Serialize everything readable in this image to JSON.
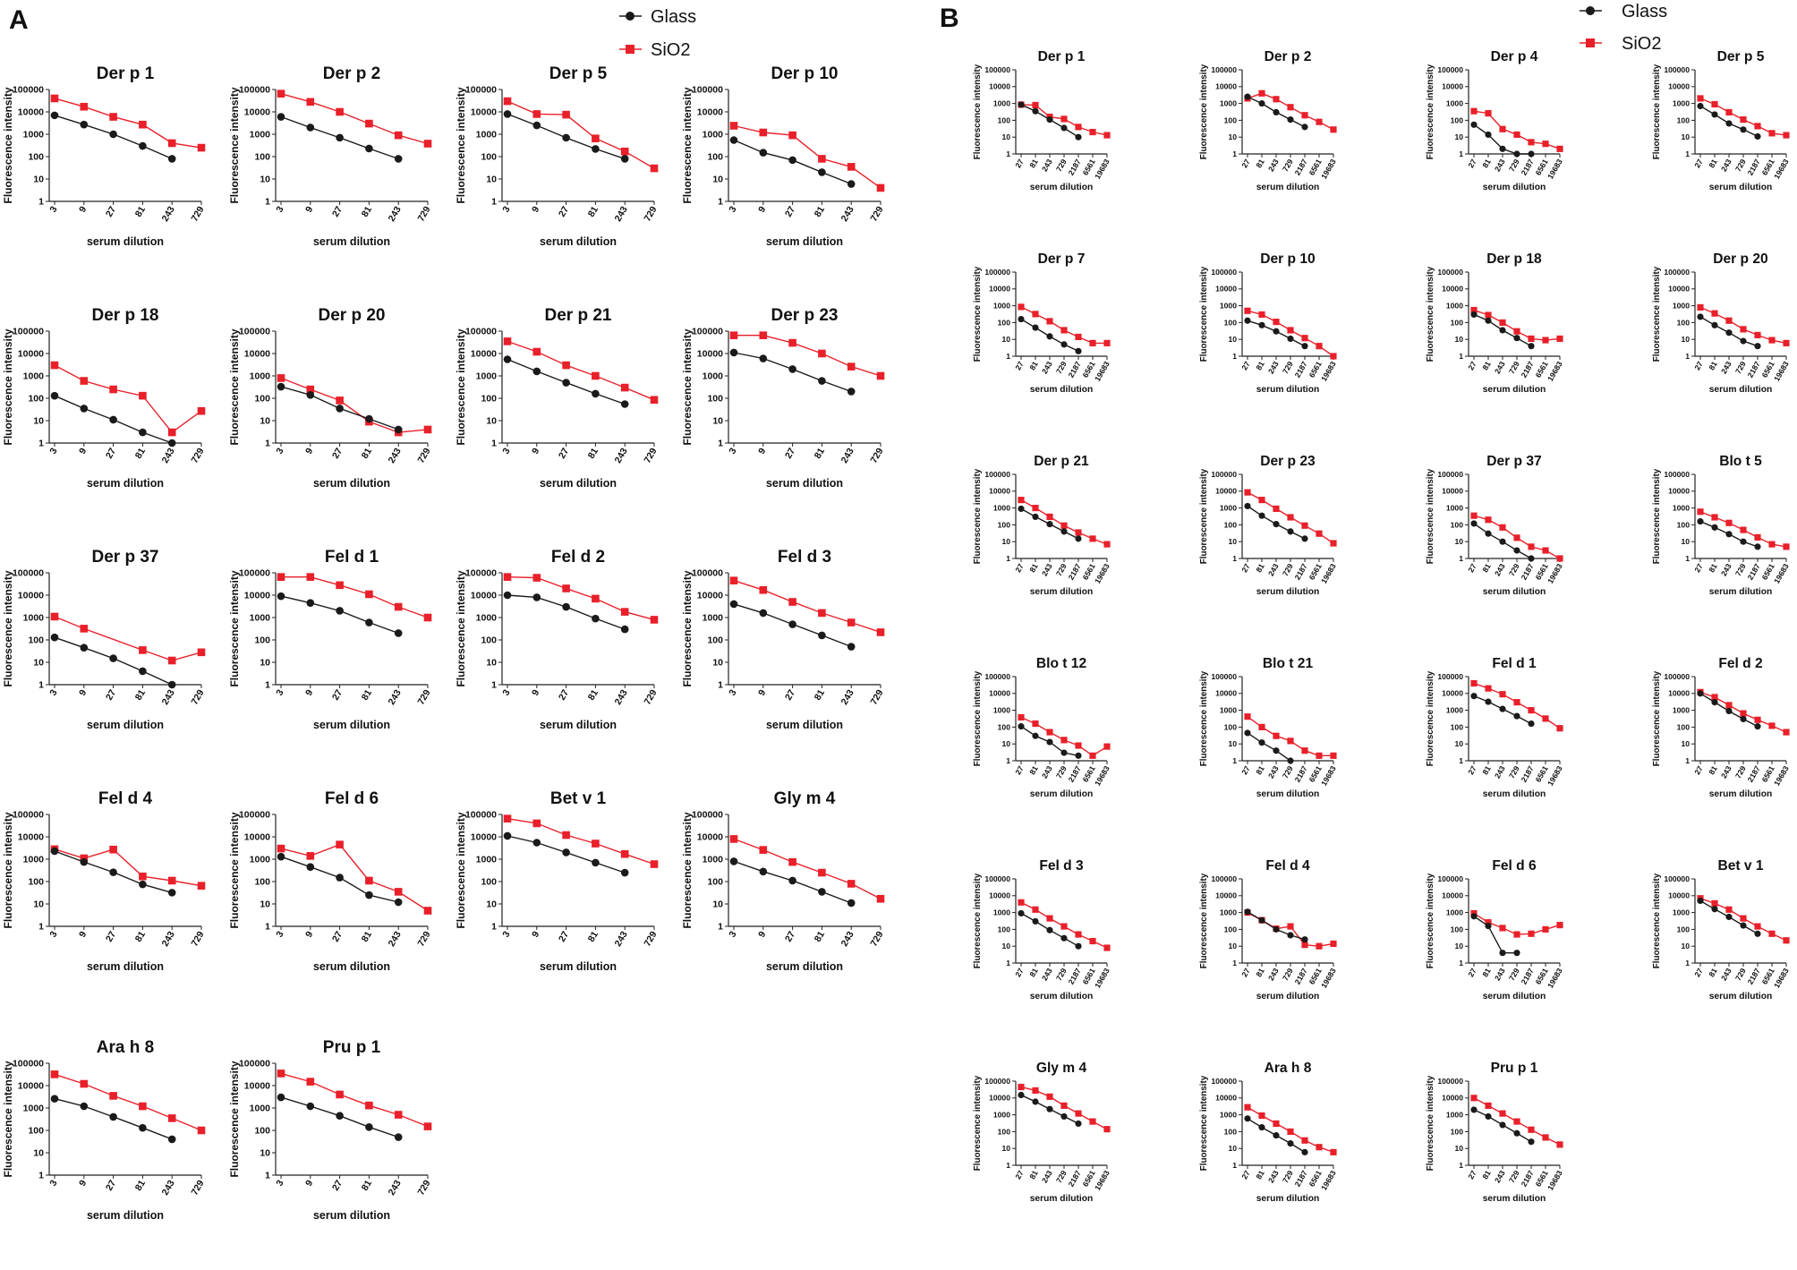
{
  "figure": {
    "panel_a_label": "A",
    "panel_b_label": "B"
  },
  "legend": {
    "glass_label": "Glass",
    "sio2_label": "SiO2",
    "glass_color": "#1a1a1a",
    "sio2_color": "#e8202a"
  },
  "axes": {
    "ylabel": "Fluorescence intensity",
    "xlabel": "serum dilution",
    "yticks": [
      "1",
      "10",
      "100",
      "1000",
      "10000",
      "100000"
    ]
  },
  "chart_data": [
    {
      "panel": "A",
      "type": "line",
      "yscale": "log",
      "ylim": [
        1,
        100000
      ],
      "xlabel": "serum dilution",
      "ylabel": "Fluorescence intensity",
      "categories": [
        "3",
        "9",
        "27",
        "81",
        "243",
        "729"
      ],
      "subplots": [
        {
          "title": "Der p 1",
          "glass": [
            7000,
            2700,
            1000,
            300,
            80,
            null
          ],
          "sio2": [
            40000,
            17000,
            6000,
            2700,
            400,
            250
          ]
        },
        {
          "title": "Der p 2",
          "glass": [
            6000,
            2000,
            700,
            230,
            80,
            null
          ],
          "sio2": [
            65000,
            28000,
            10000,
            3000,
            900,
            380
          ]
        },
        {
          "title": "Der p 5",
          "glass": [
            8000,
            2500,
            700,
            220,
            80,
            null
          ],
          "sio2": [
            30000,
            8000,
            7500,
            650,
            170,
            30
          ]
        },
        {
          "title": "Der p 10",
          "glass": [
            550,
            150,
            70,
            20,
            6,
            null
          ],
          "sio2": [
            2400,
            1200,
            900,
            80,
            35,
            4
          ]
        },
        {
          "title": "Der p 18",
          "glass": [
            130,
            35,
            11,
            3,
            1,
            null
          ],
          "sio2": [
            3000,
            600,
            250,
            130,
            3,
            27
          ]
        },
        {
          "title": "Der p 20",
          "glass": [
            330,
            140,
            35,
            12,
            4,
            null
          ],
          "sio2": [
            800,
            250,
            80,
            9,
            3,
            4
          ]
        },
        {
          "title": "Der p 21",
          "glass": [
            5500,
            1600,
            500,
            160,
            55,
            null
          ],
          "sio2": [
            35000,
            12000,
            3000,
            1000,
            300,
            85
          ]
        },
        {
          "title": "Der p 23",
          "glass": [
            11000,
            6000,
            2000,
            600,
            200,
            null
          ],
          "sio2": [
            65000,
            65000,
            30000,
            10000,
            2600,
            1000
          ]
        },
        {
          "title": "Der p 37",
          "glass": [
            130,
            45,
            15,
            4,
            1,
            null
          ],
          "sio2": [
            1100,
            320,
            null,
            35,
            12,
            28
          ]
        },
        {
          "title": "Fel d 1",
          "glass": [
            9000,
            4500,
            2000,
            600,
            200,
            null
          ],
          "sio2": [
            65000,
            65000,
            28000,
            11000,
            3000,
            1000
          ]
        },
        {
          "title": "Fel d 2",
          "glass": [
            10000,
            8000,
            3000,
            900,
            300,
            null
          ],
          "sio2": [
            65000,
            60000,
            20000,
            7000,
            1800,
            800
          ]
        },
        {
          "title": "Fel d 3",
          "glass": [
            4000,
            1600,
            500,
            160,
            50,
            null
          ],
          "sio2": [
            45000,
            17000,
            5000,
            1600,
            600,
            220
          ]
        },
        {
          "title": "Fel d 4",
          "glass": [
            2300,
            750,
            260,
            75,
            32,
            null
          ],
          "sio2": [
            2800,
            1100,
            2700,
            170,
            110,
            65
          ]
        },
        {
          "title": "Fel d 6",
          "glass": [
            1300,
            450,
            150,
            25,
            12,
            null
          ],
          "sio2": [
            3000,
            1400,
            4500,
            110,
            35,
            5
          ]
        },
        {
          "title": "Bet v 1",
          "glass": [
            11000,
            5500,
            2000,
            700,
            250,
            null
          ],
          "sio2": [
            65000,
            40000,
            12000,
            5000,
            1700,
            600
          ]
        },
        {
          "title": "Gly m 4",
          "glass": [
            800,
            280,
            110,
            35,
            11,
            null
          ],
          "sio2": [
            8000,
            2600,
            750,
            250,
            80,
            17
          ]
        },
        {
          "title": "Ara h 8",
          "glass": [
            2600,
            1200,
            400,
            130,
            40,
            null
          ],
          "sio2": [
            32000,
            12000,
            3500,
            1200,
            350,
            100
          ]
        },
        {
          "title": "Pru p 1",
          "glass": [
            3000,
            1200,
            450,
            140,
            50,
            null
          ],
          "sio2": [
            35000,
            15000,
            4000,
            1300,
            500,
            150
          ]
        }
      ]
    },
    {
      "panel": "B",
      "type": "line",
      "yscale": "log",
      "ylim": [
        1,
        100000
      ],
      "xlabel": "serum dilution",
      "ylabel": "Fluorescence intensity",
      "categories": [
        "27",
        "81",
        "243",
        "729",
        "2187",
        "6561",
        "19683"
      ],
      "subplots": [
        {
          "title": "Der p 1",
          "glass": [
            850,
            350,
            110,
            35,
            10,
            null,
            null
          ],
          "sio2": [
            850,
            800,
            160,
            120,
            40,
            20,
            13
          ]
        },
        {
          "title": "Der p 2",
          "glass": [
            2500,
            1000,
            300,
            110,
            40,
            null,
            null
          ],
          "sio2": [
            2000,
            4000,
            1800,
            600,
            200,
            80,
            28
          ]
        },
        {
          "title": "Der p 4",
          "glass": [
            55,
            14,
            2,
            1,
            1,
            null,
            null
          ],
          "sio2": [
            350,
            260,
            30,
            14,
            5,
            4,
            2
          ]
        },
        {
          "title": "Der p 5",
          "glass": [
            700,
            220,
            65,
            28,
            11,
            null,
            null
          ],
          "sio2": [
            2000,
            900,
            300,
            110,
            45,
            17,
            13
          ]
        },
        {
          "title": "Der p 7",
          "glass": [
            160,
            50,
            15,
            5,
            2,
            null,
            null
          ],
          "sio2": [
            850,
            320,
            120,
            35,
            14,
            6,
            6
          ]
        },
        {
          "title": "Der p 10",
          "glass": [
            130,
            70,
            30,
            11,
            4,
            null,
            null
          ],
          "sio2": [
            500,
            300,
            110,
            35,
            12,
            4,
            1
          ]
        },
        {
          "title": "Der p 18",
          "glass": [
            300,
            130,
            35,
            12,
            4,
            null,
            null
          ],
          "sio2": [
            550,
            280,
            100,
            30,
            11,
            9,
            11
          ]
        },
        {
          "title": "Der p 20",
          "glass": [
            220,
            70,
            25,
            8,
            4,
            null,
            null
          ],
          "sio2": [
            800,
            350,
            130,
            40,
            18,
            9,
            6
          ]
        },
        {
          "title": "Der p 21",
          "glass": [
            900,
            300,
            110,
            40,
            15,
            null,
            null
          ],
          "sio2": [
            3000,
            1000,
            300,
            90,
            35,
            15,
            7
          ]
        },
        {
          "title": "Der p 23",
          "glass": [
            1300,
            350,
            110,
            40,
            15,
            null,
            null
          ],
          "sio2": [
            8500,
            3000,
            900,
            280,
            90,
            30,
            8
          ]
        },
        {
          "title": "Der p 37",
          "glass": [
            120,
            30,
            10,
            3,
            1,
            null,
            null
          ],
          "sio2": [
            350,
            200,
            70,
            17,
            5,
            3,
            1
          ]
        },
        {
          "title": "Blo t 5",
          "glass": [
            160,
            70,
            28,
            10,
            5,
            null,
            null
          ],
          "sio2": [
            600,
            280,
            130,
            50,
            18,
            7,
            5
          ]
        },
        {
          "title": "Blo t 12",
          "glass": [
            110,
            30,
            13,
            3,
            2,
            null,
            null
          ],
          "sio2": [
            380,
            160,
            50,
            17,
            8,
            2,
            7
          ]
        },
        {
          "title": "Blo t 21",
          "glass": [
            45,
            12,
            4,
            1,
            null,
            null,
            null
          ],
          "sio2": [
            420,
            100,
            30,
            15,
            4,
            2,
            2
          ]
        },
        {
          "title": "Fel d 1",
          "glass": [
            7000,
            3200,
            1200,
            450,
            160,
            null,
            null
          ],
          "sio2": [
            40000,
            20000,
            9000,
            3000,
            1000,
            320,
            85
          ]
        },
        {
          "title": "Fel d 2",
          "glass": [
            10000,
            3000,
            900,
            300,
            110,
            null,
            null
          ],
          "sio2": [
            12000,
            6000,
            2000,
            650,
            270,
            120,
            50
          ]
        },
        {
          "title": "Fel d 3",
          "glass": [
            900,
            300,
            90,
            30,
            10,
            null,
            null
          ],
          "sio2": [
            4000,
            1500,
            450,
            150,
            50,
            20,
            8
          ]
        },
        {
          "title": "Fel d 4",
          "glass": [
            1100,
            350,
            100,
            45,
            25,
            null,
            null
          ],
          "sio2": [
            1000,
            350,
            110,
            150,
            12,
            10,
            14
          ]
        },
        {
          "title": "Fel d 6",
          "glass": [
            600,
            160,
            4,
            4,
            null,
            null,
            null
          ],
          "sio2": [
            900,
            260,
            120,
            50,
            55,
            100,
            180
          ]
        },
        {
          "title": "Bet v 1",
          "glass": [
            5000,
            1600,
            550,
            170,
            55,
            null,
            null
          ],
          "sio2": [
            7000,
            3500,
            1500,
            450,
            150,
            55,
            22
          ]
        },
        {
          "title": "Gly m 4",
          "glass": [
            15000,
            6000,
            2200,
            800,
            300,
            null,
            null
          ],
          "sio2": [
            45000,
            28000,
            12000,
            3500,
            1200,
            400,
            140
          ]
        },
        {
          "title": "Ara h 8",
          "glass": [
            600,
            180,
            60,
            20,
            6,
            null,
            null
          ],
          "sio2": [
            2800,
            900,
            300,
            100,
            30,
            12,
            6
          ]
        },
        {
          "title": "Pru p 1",
          "glass": [
            2000,
            800,
            250,
            80,
            25,
            null,
            null
          ],
          "sio2": [
            10000,
            3500,
            1200,
            400,
            130,
            45,
            17
          ]
        }
      ]
    }
  ]
}
